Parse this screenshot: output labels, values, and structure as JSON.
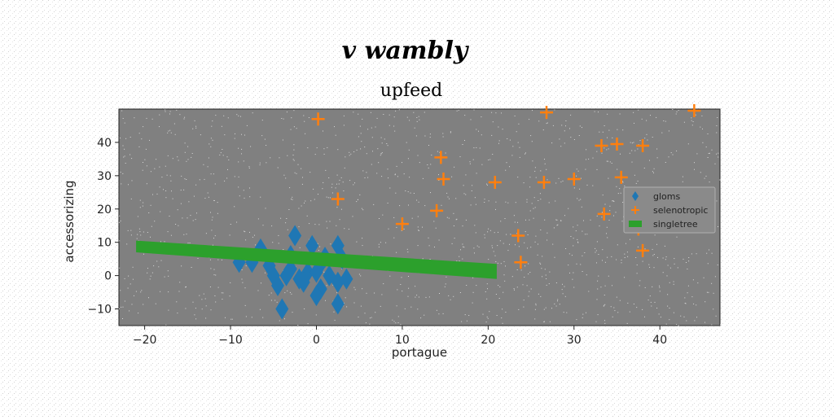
{
  "suptitle": "v wambly",
  "chart_data": {
    "type": "scatter",
    "title": "upfeed",
    "xlabel": "portague",
    "ylabel": "accessorizing",
    "xlim": [
      -23,
      47
    ],
    "ylim": [
      -15,
      50
    ],
    "xticks": [
      -20,
      -10,
      0,
      10,
      20,
      30,
      40
    ],
    "yticks": [
      -10,
      0,
      10,
      20,
      30,
      40
    ],
    "grid": false,
    "legend_position": "center-right",
    "axes_background": "#808080",
    "series": [
      {
        "name": "gloms",
        "kind": "scatter",
        "marker": "thin-diamond",
        "color": "#1f77b4",
        "points": [
          [
            -6.5,
            8.0
          ],
          [
            -5.5,
            3.0
          ],
          [
            -7.5,
            4.0
          ],
          [
            -9.0,
            4.0
          ],
          [
            -5.0,
            0.0
          ],
          [
            -3.5,
            0.0
          ],
          [
            -4.5,
            -3.0
          ],
          [
            -4.0,
            -10.0
          ],
          [
            -3.0,
            6.0
          ],
          [
            -2.5,
            12.0
          ],
          [
            -3.0,
            2.0
          ],
          [
            -2.0,
            -1.0
          ],
          [
            -1.0,
            1.0
          ],
          [
            -0.5,
            9.0
          ],
          [
            0.0,
            1.0
          ],
          [
            0.5,
            -4.0
          ],
          [
            0.0,
            -6.0
          ],
          [
            1.0,
            5.5
          ],
          [
            0.5,
            3.5
          ],
          [
            1.5,
            0.0
          ],
          [
            2.5,
            9.0
          ],
          [
            2.5,
            -2.0
          ],
          [
            2.5,
            -8.5
          ],
          [
            3.5,
            -1.0
          ],
          [
            3.0,
            5.0
          ],
          [
            -1.5,
            -2.0
          ]
        ]
      },
      {
        "name": "selenotropic",
        "kind": "scatter",
        "marker": "plus",
        "color": "#ff7f0e",
        "points": [
          [
            0.2,
            47.0
          ],
          [
            2.5,
            23.0
          ],
          [
            14.5,
            35.5
          ],
          [
            14.8,
            29.0
          ],
          [
            14.0,
            19.5
          ],
          [
            10.0,
            15.5
          ],
          [
            20.8,
            28.0
          ],
          [
            23.5,
            12.0
          ],
          [
            23.8,
            4.0
          ],
          [
            26.5,
            28.0
          ],
          [
            26.8,
            49.0
          ],
          [
            30.0,
            29.0
          ],
          [
            33.2,
            39.0
          ],
          [
            35.0,
            39.5
          ],
          [
            38.0,
            39.0
          ],
          [
            35.5,
            29.5
          ],
          [
            33.5,
            18.5
          ],
          [
            38.0,
            7.5
          ],
          [
            37.5,
            14.0
          ],
          [
            44.0,
            49.5
          ]
        ]
      },
      {
        "name": "singletree",
        "kind": "band",
        "color": "#2ca02c",
        "x": [
          -21.0,
          21.0
        ],
        "upper": [
          10.5,
          3.5
        ],
        "lower": [
          7.0,
          -1.0
        ]
      }
    ]
  }
}
